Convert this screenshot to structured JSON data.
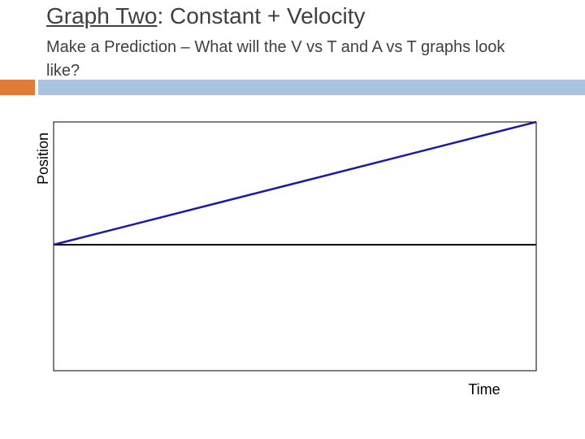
{
  "header": {
    "title_underlined": "Graph Two",
    "title_rest": ": Constant + Velocity",
    "subtitle": "Make a Prediction – What will the V vs T and A vs T graphs look like?"
  },
  "graph": {
    "y_label": "Position",
    "x_label": "Time"
  }
}
